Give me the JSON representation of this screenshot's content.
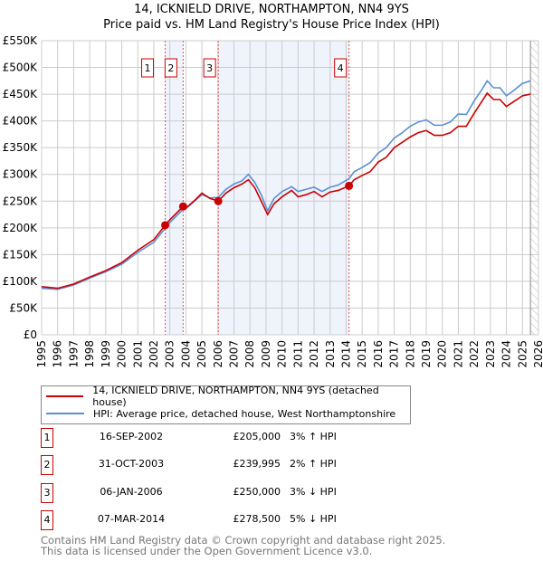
{
  "title": "14, ICKNIELD DRIVE, NORTHAMPTON, NN4 9YS",
  "subtitle": "Price paid vs. HM Land Registry's House Price Index (HPI)",
  "chart_data": {
    "type": "line",
    "title": "14, ICKNIELD DRIVE, NORTHAMPTON, NN4 9YS — Price paid vs. HM Land Registry's House Price Index (HPI)",
    "xlim": [
      1995,
      2026
    ],
    "ylim": [
      0,
      550000
    ],
    "x_ticks": [
      "1995",
      "1996",
      "1997",
      "1998",
      "1999",
      "2000",
      "2001",
      "2002",
      "2003",
      "2004",
      "2005",
      "2006",
      "2007",
      "2008",
      "2009",
      "2010",
      "2011",
      "2012",
      "2013",
      "2014",
      "2015",
      "2016",
      "2017",
      "2018",
      "2019",
      "2020",
      "2021",
      "2022",
      "2023",
      "2024",
      "2025",
      "2026"
    ],
    "y_ticks": [
      {
        "v": 0,
        "label": "£0"
      },
      {
        "v": 50000,
        "label": "£50K"
      },
      {
        "v": 100000,
        "label": "£100K"
      },
      {
        "v": 150000,
        "label": "£150K"
      },
      {
        "v": 200000,
        "label": "£200K"
      },
      {
        "v": 250000,
        "label": "£250K"
      },
      {
        "v": 300000,
        "label": "£300K"
      },
      {
        "v": 350000,
        "label": "£350K"
      },
      {
        "v": 400000,
        "label": "£400K"
      },
      {
        "v": 450000,
        "label": "£450K"
      },
      {
        "v": 500000,
        "label": "£500K"
      },
      {
        "v": 550000,
        "label": "£550K"
      }
    ],
    "grid": true,
    "series": [
      {
        "name": "14, ICKNIELD DRIVE, NORTHAMPTON, NN4 9YS (detached house)",
        "color": "#cc0000",
        "x": [
          1995,
          1996,
          1997,
          1998,
          1999,
          2000,
          2001,
          2002,
          2002.71,
          2003,
          2003.83,
          2004,
          2004.5,
          2005,
          2005.5,
          2006.02,
          2006.5,
          2007,
          2007.5,
          2007.9,
          2008.3,
          2008.7,
          2009.1,
          2009.5,
          2010,
          2010.6,
          2011,
          2011.5,
          2012,
          2012.5,
          2013,
          2013.5,
          2014.18,
          2014.5,
          2015,
          2015.5,
          2016,
          2016.5,
          2017,
          2017.5,
          2018,
          2018.5,
          2019,
          2019.5,
          2020,
          2020.5,
          2021,
          2021.5,
          2022,
          2022.5,
          2022.8,
          2023.2,
          2023.6,
          2024,
          2024.5,
          2025,
          2025.5
        ],
        "y": [
          90000,
          87000,
          95000,
          108000,
          120000,
          135000,
          158000,
          178000,
          205000,
          215000,
          239995,
          237000,
          250000,
          265000,
          255000,
          250000,
          265000,
          275000,
          282000,
          290000,
          275000,
          250000,
          225000,
          245000,
          258000,
          270000,
          258000,
          262000,
          268000,
          258000,
          267000,
          270000,
          278500,
          290000,
          298000,
          305000,
          323000,
          332000,
          350000,
          360000,
          370000,
          378000,
          382000,
          373000,
          373000,
          378000,
          390000,
          390000,
          415000,
          438000,
          452000,
          440000,
          440000,
          427000,
          437000,
          447000,
          450000
        ]
      },
      {
        "name": "HPI: Average price, detached house, West Northamptonshire",
        "color": "#5b8fd6",
        "x": [
          1995,
          1996,
          1997,
          1998,
          1999,
          2000,
          2001,
          2002,
          2002.71,
          2003,
          2003.83,
          2004,
          2004.5,
          2005,
          2005.5,
          2006.02,
          2006.5,
          2007,
          2007.5,
          2007.9,
          2008.3,
          2008.7,
          2009.1,
          2009.5,
          2010,
          2010.6,
          2011,
          2011.5,
          2012,
          2012.5,
          2013,
          2013.5,
          2014.18,
          2014.5,
          2015,
          2015.5,
          2016,
          2016.5,
          2017,
          2017.5,
          2018,
          2018.5,
          2019,
          2019.5,
          2020,
          2020.5,
          2021,
          2021.5,
          2022,
          2022.5,
          2022.8,
          2023.2,
          2023.6,
          2024,
          2024.5,
          2025,
          2025.5
        ],
        "y": [
          87000,
          85000,
          93000,
          106000,
          118000,
          132000,
          154000,
          173000,
          199000,
          210000,
          235000,
          236000,
          249000,
          262000,
          256000,
          257000,
          272000,
          282000,
          288000,
          300000,
          285000,
          262000,
          232000,
          255000,
          268000,
          277000,
          268000,
          272000,
          276000,
          268000,
          276000,
          280000,
          292000,
          305000,
          313000,
          322000,
          340000,
          350000,
          368000,
          378000,
          390000,
          398000,
          402000,
          392000,
          392000,
          398000,
          413000,
          412000,
          438000,
          460000,
          475000,
          462000,
          462000,
          447000,
          458000,
          470000,
          475000
        ]
      }
    ],
    "sales": [
      {
        "n": "1",
        "x": 2002.71,
        "y": 205000,
        "date": "16-SEP-2002",
        "price": "£205,000",
        "hpi": "3% ↑ HPI"
      },
      {
        "n": "2",
        "x": 2003.83,
        "y": 239995,
        "date": "31-OCT-2003",
        "price": "£239,995",
        "hpi": "2% ↑ HPI"
      },
      {
        "n": "3",
        "x": 2006.02,
        "y": 250000,
        "date": "06-JAN-2006",
        "price": "£250,000",
        "hpi": "3% ↓ HPI"
      },
      {
        "n": "4",
        "x": 2014.18,
        "y": 278500,
        "date": "07-MAR-2014",
        "price": "£278,500",
        "hpi": "5% ↓ HPI"
      }
    ],
    "shaded_ranges": [
      [
        2002.71,
        2003.83
      ],
      [
        2006.02,
        2014.18
      ]
    ],
    "forecast_from": 2025.5,
    "legend": "below"
  },
  "legend": {
    "property": "14, ICKNIELD DRIVE, NORTHAMPTON, NN4 9YS (detached house)",
    "hpi": "HPI: Average price, detached house, West Northamptonshire"
  },
  "footer": {
    "line1": "Contains HM Land Registry data © Crown copyright and database right 2025.",
    "line2": "This data is licensed under the Open Government Licence v3.0."
  }
}
